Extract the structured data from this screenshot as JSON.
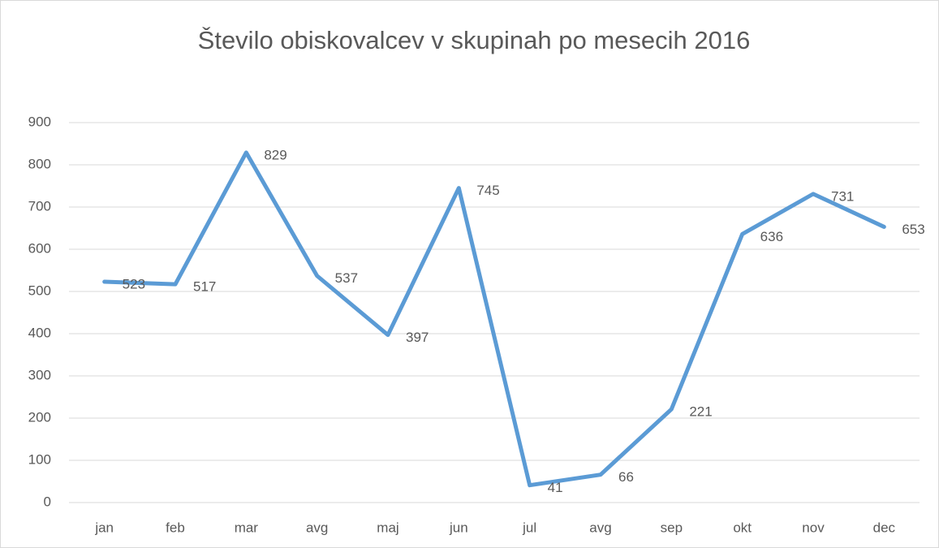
{
  "chart_data": {
    "type": "line",
    "title": "Število obiskovalcev v skupinah po mesecih 2016",
    "categories": [
      "jan",
      "feb",
      "mar",
      "avg",
      "maj",
      "jun",
      "jul",
      "avg",
      "sep",
      "okt",
      "nov",
      "dec"
    ],
    "series": [
      {
        "color": "#5b9bd5",
        "values": [
          523,
          517,
          829,
          537,
          397,
          745,
          41,
          66,
          221,
          636,
          731,
          653
        ]
      }
    ],
    "ylim": [
      0,
      900
    ],
    "yticks": [
      0,
      100,
      200,
      300,
      400,
      500,
      600,
      700,
      800,
      900
    ],
    "grid": true,
    "data_labels": true
  }
}
